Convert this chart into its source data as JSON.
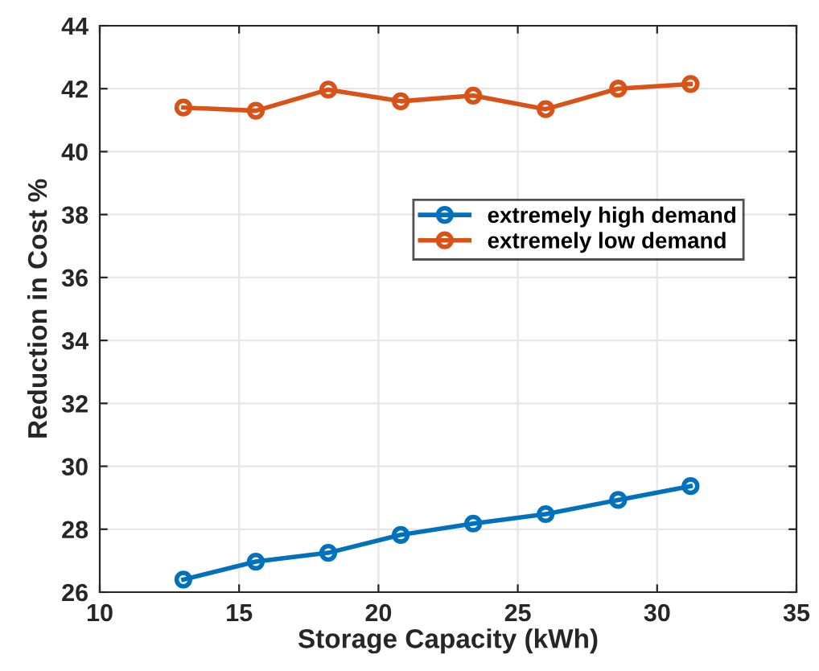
{
  "chart_data": {
    "type": "line",
    "xlabel": "Storage Capacity (kWh)",
    "ylabel": "Reduction in Cost %",
    "x": [
      13,
      15.6,
      18.2,
      20.8,
      23.4,
      26,
      28.6,
      31.2
    ],
    "series": [
      {
        "name": "extremely high demand",
        "color": "#0072bd",
        "values": [
          26.4,
          26.97,
          27.25,
          27.82,
          28.18,
          28.48,
          28.93,
          29.37
        ]
      },
      {
        "name": "extremely low demand",
        "color": "#d95319",
        "values": [
          41.4,
          41.3,
          41.97,
          41.6,
          41.78,
          41.35,
          42.0,
          42.15
        ]
      }
    ],
    "xlim": [
      10,
      35
    ],
    "xticks": [
      10,
      15,
      20,
      25,
      30,
      35
    ],
    "ylim": [
      26,
      44
    ],
    "yticks": [
      26,
      28,
      30,
      32,
      34,
      36,
      38,
      40,
      42,
      44
    ],
    "grid": true,
    "legend": "right",
    "marker": "circle",
    "line_style": "solid"
  }
}
